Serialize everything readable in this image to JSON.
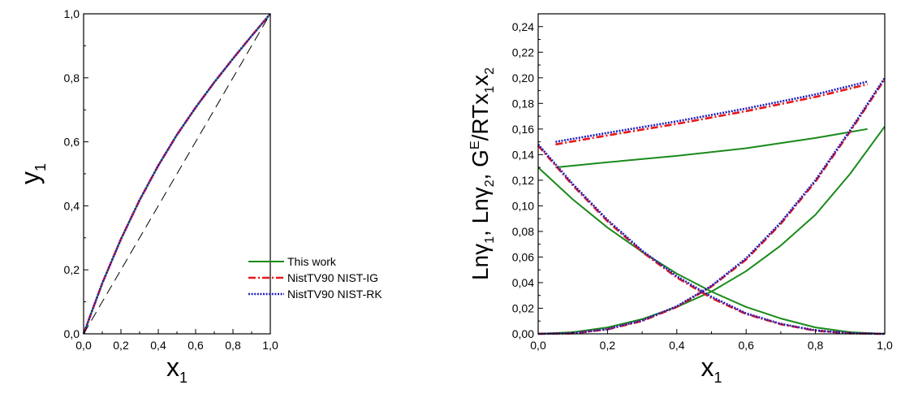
{
  "colors": {
    "this_work": "#1a8a1a",
    "ig": "#e8191a",
    "rk": "#1f1fbf",
    "diagonal": "#000000"
  },
  "chart_data": [
    {
      "type": "line",
      "xlabel": "x",
      "xlabel_sub": "1",
      "ylabel": "y",
      "ylabel_sub": "1",
      "xlim": [
        0,
        1
      ],
      "ylim": [
        0,
        1
      ],
      "x_ticks": [
        "0,0",
        "0,2",
        "0,4",
        "0,6",
        "0,8",
        "1,0"
      ],
      "y_ticks": [
        "0,0",
        "0,2",
        "0,4",
        "0,6",
        "0,8",
        "1,0"
      ],
      "grid": false,
      "legend_position": "bottom-right",
      "legend": [
        {
          "label": "This work",
          "color_key": "this_work",
          "style": "solid"
        },
        {
          "label": "NistTV90 NIST-IG",
          "color_key": "ig",
          "style": "dashdot"
        },
        {
          "label": "NistTV90 NIST-RK",
          "color_key": "rk",
          "style": "dotted"
        }
      ],
      "series": [
        {
          "name": "This work",
          "color_key": "this_work",
          "style": "solid",
          "x": [
            0,
            0.1,
            0.2,
            0.3,
            0.4,
            0.5,
            0.6,
            0.7,
            0.8,
            0.9,
            1.0
          ],
          "y": [
            0,
            0.158,
            0.296,
            0.418,
            0.526,
            0.622,
            0.707,
            0.786,
            0.86,
            0.931,
            1.0
          ]
        },
        {
          "name": "NistTV90 NIST-IG",
          "color_key": "ig",
          "style": "dashdot",
          "x": [
            0,
            0.1,
            0.2,
            0.3,
            0.4,
            0.5,
            0.6,
            0.7,
            0.8,
            0.9,
            1.0
          ],
          "y": [
            0,
            0.158,
            0.296,
            0.418,
            0.526,
            0.622,
            0.707,
            0.786,
            0.86,
            0.931,
            1.0
          ]
        },
        {
          "name": "NistTV90 NIST-RK",
          "color_key": "rk",
          "style": "dotted",
          "x": [
            0,
            0.1,
            0.2,
            0.3,
            0.4,
            0.5,
            0.6,
            0.7,
            0.8,
            0.9,
            1.0
          ],
          "y": [
            0,
            0.158,
            0.296,
            0.418,
            0.526,
            0.622,
            0.707,
            0.786,
            0.86,
            0.931,
            1.0
          ]
        },
        {
          "color_key": "diagonal",
          "style": "longdash",
          "x": [
            0,
            1.0
          ],
          "y": [
            0,
            1.0
          ]
        }
      ]
    },
    {
      "type": "line",
      "xlabel": "x",
      "xlabel_sub": "1",
      "ylabel_parts": [
        "Ln",
        "γ",
        "1",
        ", Ln",
        "γ",
        "2",
        ", G",
        "E",
        "/RTx",
        "1",
        "x",
        "2"
      ],
      "xlim": [
        0,
        1
      ],
      "ylim": [
        0,
        0.25
      ],
      "x_ticks": [
        "0,0",
        "0,2",
        "0,4",
        "0,6",
        "0,8",
        "1,0"
      ],
      "y_ticks": [
        "0,00",
        "0,02",
        "0,04",
        "0,06",
        "0,08",
        "0,10",
        "0,12",
        "0,14",
        "0,16",
        "0,18",
        "0,20",
        "0,22",
        "0,24"
      ],
      "grid": false,
      "series": [
        {
          "color_key": "this_work",
          "style": "solid",
          "x": [
            0,
            0.1,
            0.2,
            0.3,
            0.4,
            0.5,
            0.6,
            0.7,
            0.8,
            0.9,
            1.0
          ],
          "y": [
            0.13,
            0.105,
            0.083,
            0.064,
            0.047,
            0.033,
            0.021,
            0.012,
            0.005,
            0.0013,
            0
          ]
        },
        {
          "color_key": "this_work",
          "style": "solid",
          "x": [
            0,
            0.1,
            0.2,
            0.3,
            0.4,
            0.5,
            0.6,
            0.7,
            0.8,
            0.9,
            1.0
          ],
          "y": [
            0,
            0.0013,
            0.005,
            0.0115,
            0.021,
            0.033,
            0.049,
            0.069,
            0.093,
            0.125,
            0.162
          ]
        },
        {
          "color_key": "this_work",
          "style": "solid",
          "x": [
            0.05,
            0.2,
            0.4,
            0.6,
            0.8,
            0.95
          ],
          "y": [
            0.13,
            0.134,
            0.139,
            0.145,
            0.153,
            0.16
          ]
        },
        {
          "color_key": "ig",
          "style": "dashdot",
          "x": [
            0,
            0.1,
            0.2,
            0.3,
            0.4,
            0.5,
            0.6,
            0.7,
            0.8,
            0.9,
            1.0
          ],
          "y": [
            0.147,
            0.116,
            0.088,
            0.064,
            0.044,
            0.028,
            0.0155,
            0.0075,
            0.0025,
            0.0004,
            0
          ]
        },
        {
          "color_key": "ig",
          "style": "dashdot",
          "x": [
            0,
            0.1,
            0.2,
            0.3,
            0.4,
            0.5,
            0.6,
            0.7,
            0.8,
            0.9,
            1.0
          ],
          "y": [
            0,
            0.0004,
            0.0035,
            0.01,
            0.021,
            0.037,
            0.058,
            0.086,
            0.119,
            0.158,
            0.199
          ]
        },
        {
          "color_key": "ig",
          "style": "dashdot",
          "x": [
            0.05,
            0.2,
            0.4,
            0.6,
            0.8,
            0.95
          ],
          "y": [
            0.148,
            0.155,
            0.164,
            0.174,
            0.185,
            0.195
          ]
        },
        {
          "color_key": "rk",
          "style": "dotted",
          "x": [
            0,
            0.1,
            0.2,
            0.3,
            0.4,
            0.5,
            0.6,
            0.7,
            0.8,
            0.9,
            1.0
          ],
          "y": [
            0.148,
            0.117,
            0.089,
            0.065,
            0.045,
            0.029,
            0.016,
            0.0078,
            0.0027,
            0.0005,
            0
          ]
        },
        {
          "color_key": "rk",
          "style": "dotted",
          "x": [
            0,
            0.1,
            0.2,
            0.3,
            0.4,
            0.5,
            0.6,
            0.7,
            0.8,
            0.9,
            1.0
          ],
          "y": [
            0,
            0.0005,
            0.0037,
            0.0105,
            0.0215,
            0.0375,
            0.059,
            0.087,
            0.12,
            0.159,
            0.2
          ]
        },
        {
          "color_key": "rk",
          "style": "dotted",
          "x": [
            0.05,
            0.2,
            0.4,
            0.6,
            0.8,
            0.95
          ],
          "y": [
            0.15,
            0.157,
            0.166,
            0.176,
            0.187,
            0.197
          ]
        }
      ]
    }
  ]
}
